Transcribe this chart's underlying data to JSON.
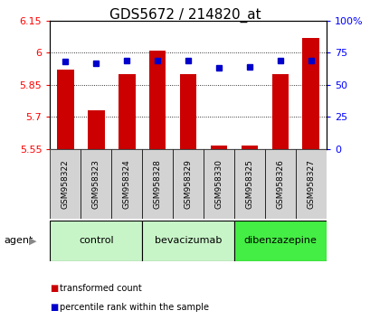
{
  "title": "GDS5672 / 214820_at",
  "samples": [
    "GSM958322",
    "GSM958323",
    "GSM958324",
    "GSM958328",
    "GSM958329",
    "GSM958330",
    "GSM958325",
    "GSM958326",
    "GSM958327"
  ],
  "bar_values": [
    5.92,
    5.73,
    5.9,
    6.01,
    5.9,
    5.565,
    5.565,
    5.9,
    6.07
  ],
  "percentile_values": [
    68,
    67,
    69,
    69,
    69,
    63,
    64,
    69,
    69
  ],
  "ylim_left": [
    5.55,
    6.15
  ],
  "ylim_right": [
    0,
    100
  ],
  "yticks_left": [
    5.55,
    5.7,
    5.85,
    6.0,
    6.15
  ],
  "yticks_right": [
    0,
    25,
    50,
    75,
    100
  ],
  "ytick_labels_left": [
    "5.55",
    "5.7",
    "5.85",
    "6",
    "6.15"
  ],
  "ytick_labels_right": [
    "0",
    "25",
    "50",
    "75",
    "100%"
  ],
  "groups": [
    {
      "label": "control",
      "indices": [
        0,
        1,
        2
      ],
      "color": "#c8f5c8"
    },
    {
      "label": "bevacizumab",
      "indices": [
        3,
        4,
        5
      ],
      "color": "#c8f5c8"
    },
    {
      "label": "dibenzazepine",
      "indices": [
        6,
        7,
        8
      ],
      "color": "#44ee44"
    }
  ],
  "bar_color": "#cc0000",
  "marker_color": "#0000cc",
  "sample_bg_color": "#d3d3d3",
  "agent_label": "agent",
  "legend_items": [
    {
      "color": "#cc0000",
      "label": "transformed count"
    },
    {
      "color": "#0000cc",
      "label": "percentile rank within the sample"
    }
  ],
  "title_fontsize": 11,
  "tick_fontsize": 8,
  "label_fontsize": 8,
  "bar_width": 0.55
}
